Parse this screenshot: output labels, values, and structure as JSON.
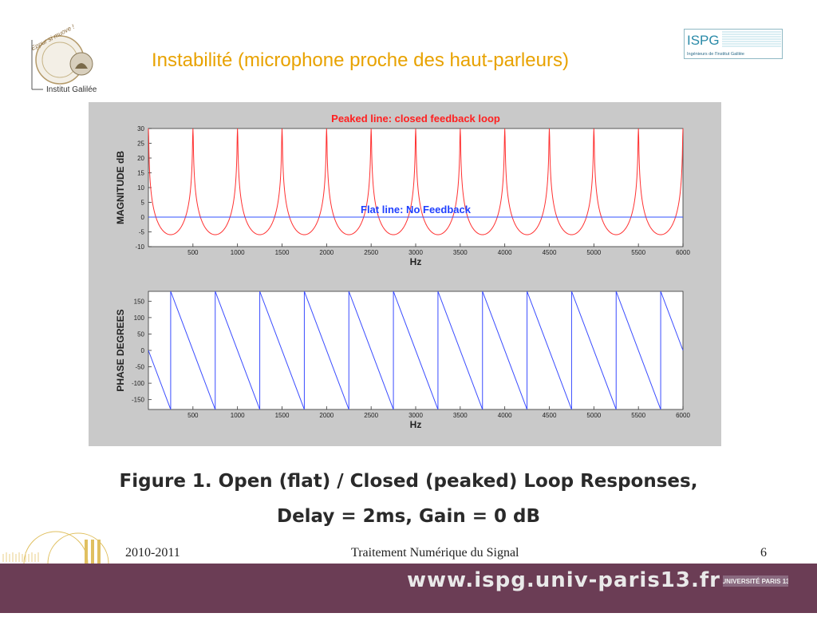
{
  "slide": {
    "title": "Instabilité (microphone proche des haut-parleurs)",
    "caption_line1": "Figure 1. Open (flat) / Closed (peaked) Loop Responses,",
    "caption_line2": "Delay = 2ms, Gain = 0 dB"
  },
  "logos": {
    "galilee_motto": "Eppur si muove !",
    "galilee_name": "Institut Galilée",
    "ispg_name": "ISPG",
    "ispg_tagline": "Ingénieurs de l'Institut Galilée",
    "paris13_text": "UNIVERSITÉ PARIS 13"
  },
  "footer": {
    "year": "2010-2011",
    "course": "Traitement Numérique du Signal",
    "page": "6",
    "url": "www.ispg.univ-paris13.fr"
  },
  "colors": {
    "title": "#e8a200",
    "peaked_line": "#ff3030",
    "flat_line": "#3050ff",
    "phase_line": "#3a4cff",
    "footer_bar": "#6b3d55",
    "panel_bg": "#c9c9c9"
  },
  "chart_data": [
    {
      "type": "line",
      "title": "Peaked line: closed feedback loop",
      "annotation": "Flat line: No Feedback",
      "xlabel": "Hz",
      "ylabel": "MAGNITUDE dB",
      "xlim": [
        0,
        6000
      ],
      "ylim": [
        -10,
        30
      ],
      "xticks": [
        500,
        1000,
        1500,
        2000,
        2500,
        3000,
        3500,
        4000,
        4500,
        5000,
        5500,
        6000
      ],
      "yticks": [
        30,
        25,
        20,
        15,
        10,
        5,
        0,
        -5,
        -10
      ],
      "grid": false,
      "peak_period_hz": 500,
      "peak_frequencies_hz": [
        0,
        500,
        1000,
        1500,
        2000,
        2500,
        3000,
        3500,
        4000,
        4500,
        5000,
        5500,
        6000
      ],
      "series": [
        {
          "key": "peaked",
          "shape": "closed_loop_feedback",
          "peak_db": 30,
          "min_db": -6
        },
        {
          "key": "flat",
          "shape": "constant",
          "value_db": 0
        }
      ]
    },
    {
      "type": "line",
      "xlabel": "Hz",
      "ylabel": "PHASE DEGREES",
      "xlim": [
        0,
        6000
      ],
      "ylim": [
        -180,
        180
      ],
      "xticks": [
        500,
        1000,
        1500,
        2000,
        2500,
        3000,
        3500,
        4000,
        4500,
        5000,
        5500,
        6000
      ],
      "yticks": [
        150,
        100,
        50,
        0,
        -50,
        -100,
        -150
      ],
      "grid": false,
      "series": [
        {
          "key": "phase",
          "shape": "sawtooth",
          "period_hz": 500,
          "wrap_frequencies_hz": [
            250,
            750,
            1250,
            1750,
            2250,
            2750,
            3250,
            3750,
            4250,
            4750,
            5250,
            5750
          ],
          "min_deg": -180,
          "max_deg": 180
        }
      ]
    }
  ]
}
